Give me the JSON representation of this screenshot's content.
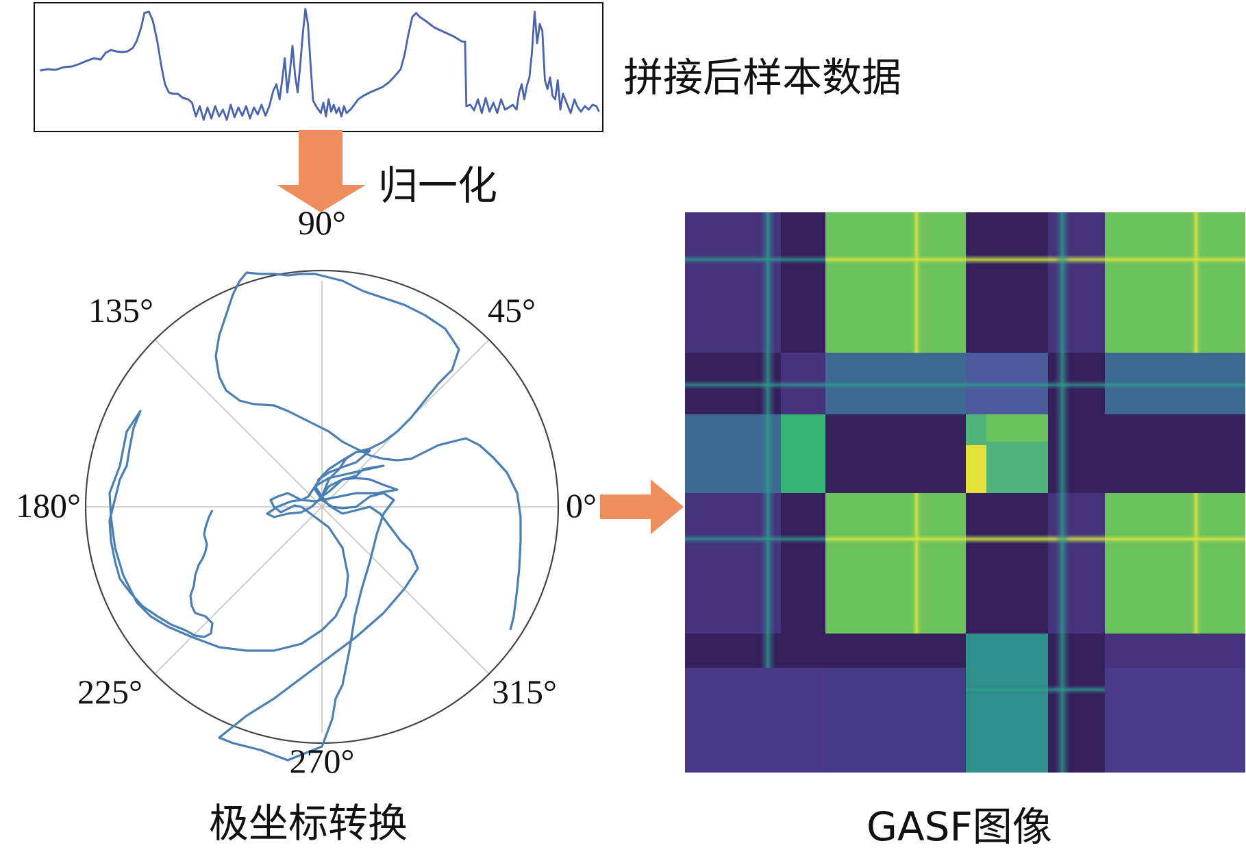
{
  "labels": {
    "stitched": "拼接后样本数据",
    "normalize": "归一化",
    "polar": "极坐标转换",
    "gasf": "GASF图像"
  },
  "polar_angles": [
    "90°",
    "45°",
    "0°",
    "315°",
    "270°",
    "225°",
    "180°",
    "135°"
  ],
  "colors": {
    "signal": "#4a64ae",
    "polar_trace": "#4a7fb5",
    "arrow": "#ee8e5c",
    "circle": "#444444",
    "grid": "#c9c2bc"
  }
}
